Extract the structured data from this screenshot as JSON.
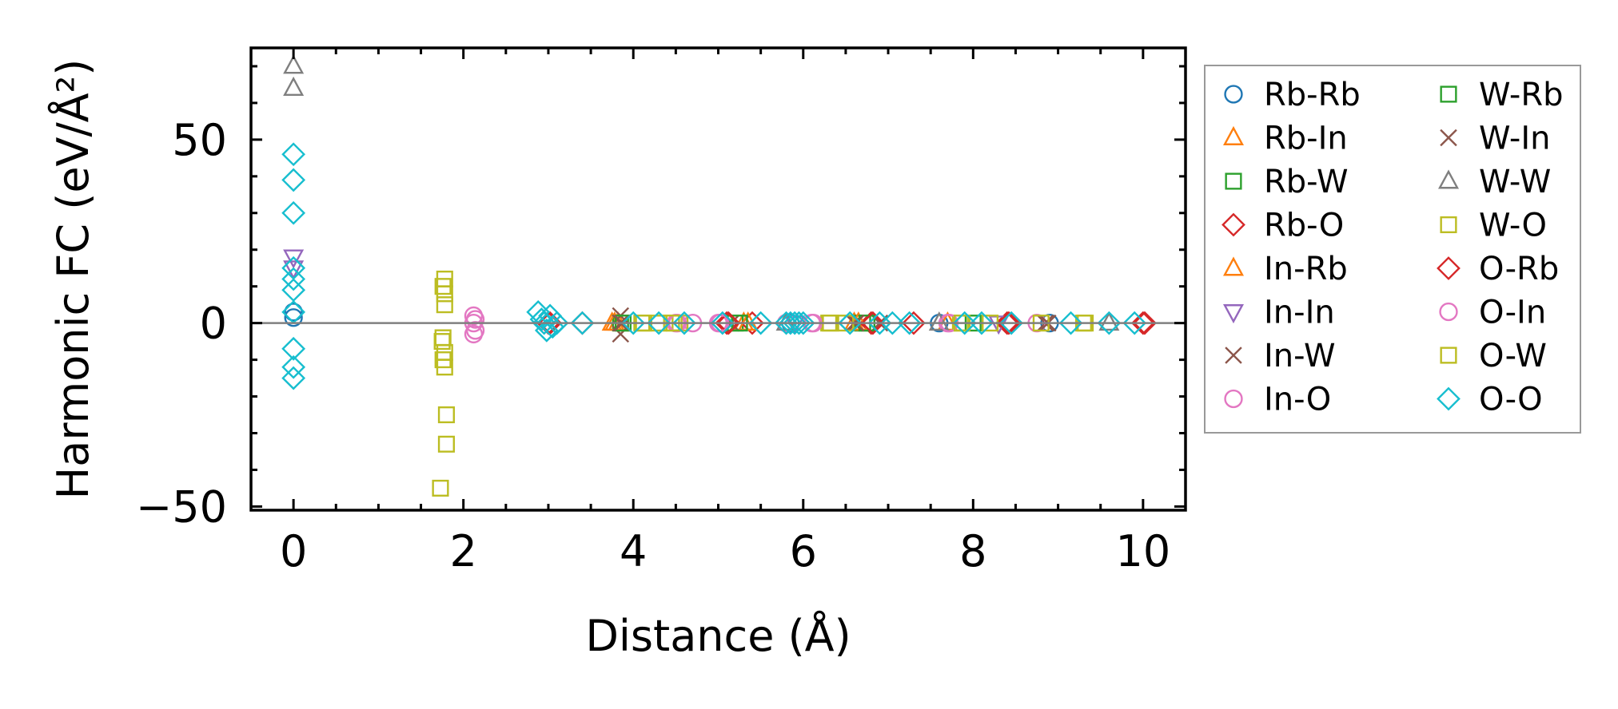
{
  "chart_data": {
    "type": "scatter",
    "xlabel": "Distance (Å)",
    "ylabel": "Harmonic FC (eV/Å²)",
    "xlim": [
      -0.5,
      10.5
    ],
    "ylim": [
      -51,
      75
    ],
    "xticks": [
      0,
      2,
      4,
      6,
      8,
      10
    ],
    "yticks": [
      -50,
      0,
      50
    ],
    "xtick_labels": [
      "0",
      "2",
      "4",
      "6",
      "8",
      "10"
    ],
    "ytick_labels": [
      "−50",
      "0",
      "50"
    ],
    "grid": false,
    "zero_line": true,
    "legend": {
      "placement": "outside-right",
      "columns": 2
    },
    "series": [
      {
        "name": "Rb-Rb",
        "marker": "circle",
        "color": "#1f77b4",
        "points": [
          [
            0,
            1.5
          ],
          [
            0,
            3
          ],
          [
            5.85,
            0
          ],
          [
            7.6,
            0
          ],
          [
            8.9,
            0
          ]
        ]
      },
      {
        "name": "Rb-In",
        "marker": "triangle-up",
        "color": "#ff7f0e",
        "points": [
          [
            3.75,
            0
          ],
          [
            3.82,
            0
          ],
          [
            5.3,
            0
          ],
          [
            6.6,
            0
          ],
          [
            7.7,
            0
          ]
        ]
      },
      {
        "name": "Rb-W",
        "marker": "square",
        "color": "#2ca02c",
        "points": [
          [
            3.85,
            0
          ],
          [
            5.2,
            0
          ],
          [
            6.7,
            0
          ],
          [
            8.0,
            0
          ]
        ]
      },
      {
        "name": "Rb-O",
        "marker": "diamond",
        "color": "#d62728",
        "points": [
          [
            3.0,
            0
          ],
          [
            3.4,
            0
          ],
          [
            5.1,
            0
          ],
          [
            5.4,
            0
          ],
          [
            6.8,
            0
          ],
          [
            7.3,
            0
          ],
          [
            8.4,
            0
          ],
          [
            10.0,
            0
          ]
        ]
      },
      {
        "name": "In-Rb",
        "marker": "triangle-up",
        "color": "#ff7f0e",
        "points": [
          [
            3.78,
            0
          ],
          [
            5.35,
            0
          ],
          [
            6.65,
            0
          ]
        ]
      },
      {
        "name": "In-In",
        "marker": "triangle-down",
        "color": "#9467bd",
        "points": [
          [
            0,
            18
          ],
          [
            0,
            15
          ],
          [
            5.9,
            0
          ],
          [
            8.3,
            0
          ]
        ]
      },
      {
        "name": "In-W",
        "marker": "x",
        "color": "#8c564b",
        "points": [
          [
            3.85,
            -3
          ],
          [
            3.85,
            0
          ],
          [
            3.85,
            2
          ],
          [
            5.15,
            0
          ],
          [
            6.6,
            0
          ],
          [
            6.9,
            0
          ],
          [
            8.85,
            0
          ]
        ]
      },
      {
        "name": "In-O",
        "marker": "circle",
        "color": "#e377c2",
        "points": [
          [
            2.12,
            2
          ],
          [
            2.12,
            0
          ],
          [
            2.12,
            -3
          ],
          [
            4.5,
            0
          ],
          [
            4.7,
            0
          ],
          [
            5.0,
            0
          ],
          [
            5.8,
            0
          ],
          [
            6.1,
            0
          ],
          [
            7.7,
            0
          ],
          [
            8.75,
            0
          ]
        ]
      },
      {
        "name": "W-Rb",
        "marker": "square",
        "color": "#2ca02c",
        "points": [
          [
            3.88,
            0
          ],
          [
            5.25,
            0
          ],
          [
            6.75,
            0
          ]
        ]
      },
      {
        "name": "W-In",
        "marker": "x",
        "color": "#8c564b",
        "points": [
          [
            3.87,
            0
          ],
          [
            6.62,
            0
          ],
          [
            8.88,
            0
          ]
        ]
      },
      {
        "name": "W-W",
        "marker": "triangle-up",
        "color": "#7f7f7f",
        "points": [
          [
            0,
            70
          ],
          [
            0,
            64
          ],
          [
            5.8,
            0
          ],
          [
            7.6,
            0
          ],
          [
            9.6,
            0
          ]
        ]
      },
      {
        "name": "W-O",
        "marker": "square",
        "color": "#bcbd22",
        "points": [
          [
            1.78,
            12
          ],
          [
            1.78,
            8
          ],
          [
            1.78,
            5
          ],
          [
            1.75,
            -5
          ],
          [
            1.78,
            -8
          ],
          [
            1.78,
            -12
          ],
          [
            1.8,
            -25
          ],
          [
            1.8,
            -33
          ],
          [
            1.73,
            -45
          ],
          [
            4.1,
            0
          ],
          [
            4.3,
            0
          ],
          [
            4.45,
            0
          ],
          [
            4.55,
            0
          ],
          [
            6.3,
            0
          ],
          [
            6.5,
            0
          ],
          [
            7.85,
            0
          ],
          [
            8.2,
            0
          ],
          [
            8.8,
            0
          ],
          [
            9.3,
            0
          ]
        ]
      },
      {
        "name": "O-Rb",
        "marker": "diamond",
        "color": "#d62728",
        "points": [
          [
            3.02,
            0
          ],
          [
            5.12,
            0
          ],
          [
            6.82,
            0
          ],
          [
            8.42,
            0
          ],
          [
            10.02,
            0
          ]
        ]
      },
      {
        "name": "O-In",
        "marker": "circle",
        "color": "#e377c2",
        "points": [
          [
            2.14,
            1
          ],
          [
            2.14,
            -2
          ],
          [
            4.52,
            0
          ],
          [
            5.02,
            0
          ],
          [
            6.12,
            0
          ],
          [
            7.72,
            0
          ]
        ]
      },
      {
        "name": "O-W",
        "marker": "square",
        "color": "#bcbd22",
        "points": [
          [
            1.76,
            10
          ],
          [
            1.76,
            -4
          ],
          [
            1.76,
            -10
          ],
          [
            4.12,
            0
          ],
          [
            4.48,
            0
          ],
          [
            6.32,
            0
          ],
          [
            7.87,
            0
          ],
          [
            9.32,
            0
          ]
        ]
      },
      {
        "name": "O-O",
        "marker": "diamond",
        "color": "#17becf",
        "points": [
          [
            0,
            46
          ],
          [
            0,
            39
          ],
          [
            0,
            30
          ],
          [
            0,
            15
          ],
          [
            0,
            12
          ],
          [
            0,
            9
          ],
          [
            0,
            3
          ],
          [
            0,
            -7
          ],
          [
            0,
            -12
          ],
          [
            0,
            -15
          ],
          [
            2.88,
            3
          ],
          [
            2.92,
            1
          ],
          [
            2.95,
            0
          ],
          [
            2.98,
            -2
          ],
          [
            3.02,
            2
          ],
          [
            3.05,
            -1
          ],
          [
            3.1,
            0
          ],
          [
            3.4,
            0
          ],
          [
            4.0,
            0
          ],
          [
            4.3,
            0
          ],
          [
            4.6,
            0
          ],
          [
            5.05,
            0
          ],
          [
            5.5,
            0
          ],
          [
            5.8,
            0
          ],
          [
            5.85,
            0
          ],
          [
            5.9,
            0
          ],
          [
            5.95,
            0
          ],
          [
            6.0,
            0
          ],
          [
            6.55,
            0
          ],
          [
            6.9,
            0
          ],
          [
            7.05,
            0
          ],
          [
            7.25,
            0
          ],
          [
            7.9,
            0
          ],
          [
            8.1,
            0
          ],
          [
            8.45,
            0
          ],
          [
            9.15,
            0
          ],
          [
            9.6,
            0
          ],
          [
            9.9,
            0
          ]
        ]
      }
    ]
  }
}
